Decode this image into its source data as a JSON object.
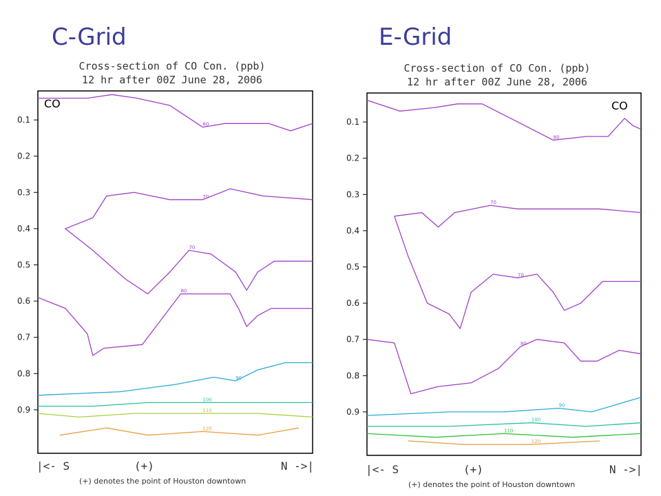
{
  "headings": [
    "C-Grid",
    "E-Grid"
  ],
  "panels": [
    {
      "title_line1": "Cross-section of CO Con. (ppb)",
      "title_line2": "12 hr after 00Z June 28, 2006",
      "species_label": "CO",
      "left_label": "|<- S",
      "center_label": "(+)",
      "right_label": "N ->|",
      "note": "(+) denotes the point of Houston downtown"
    },
    {
      "title_line1": "Cross-section of CO Con. (ppb)",
      "title_line2": "12 hr after 00Z June 28, 2006",
      "species_label": "CO",
      "left_label": "|<- S",
      "center_label": "(+)",
      "right_label": "N ->|",
      "note": "(+) denotes the point of Houston downtown"
    }
  ],
  "chart_data": [
    {
      "type": "contour",
      "title": "Cross-section of CO Con. (ppb)",
      "subtitle": "12 hr after 00Z June 28, 2006",
      "xlabel": "|<- S    (+)    N ->|",
      "yticks": [
        0.1,
        0.2,
        0.3,
        0.4,
        0.5,
        0.6,
        0.7,
        0.8,
        0.9
      ],
      "contour_levels": [
        70,
        80,
        90,
        100,
        110,
        120
      ],
      "level_colors": {
        "70": "#a040c8",
        "80": "#a040c8",
        "90": "#2aa8d8",
        "100": "#28c0a0",
        "110": "#a8d040",
        "120": "#e8a040"
      },
      "contours": [
        {
          "level": 80,
          "points": [
            [
              0,
              0.02
            ],
            [
              0.18,
              0.02
            ],
            [
              0.27,
              0.01
            ],
            [
              0.36,
              0.02
            ],
            [
              0.48,
              0.04
            ],
            [
              0.6,
              0.1
            ],
            [
              0.68,
              0.09
            ],
            [
              0.84,
              0.09
            ],
            [
              0.92,
              0.11
            ],
            [
              1,
              0.09
            ]
          ]
        },
        {
          "level": 70,
          "points": [
            [
              0.2,
              0.35
            ],
            [
              0.25,
              0.29
            ],
            [
              0.35,
              0.28
            ],
            [
              0.48,
              0.3
            ],
            [
              0.6,
              0.3
            ],
            [
              0.7,
              0.27
            ],
            [
              0.82,
              0.29
            ],
            [
              1,
              0.3
            ]
          ]
        },
        {
          "level": 70,
          "points": [
            [
              0.2,
              0.35
            ],
            [
              0.1,
              0.38
            ],
            [
              0.2,
              0.44
            ],
            [
              0.32,
              0.52
            ],
            [
              0.4,
              0.56
            ],
            [
              0.48,
              0.5
            ],
            [
              0.55,
              0.44
            ],
            [
              0.63,
              0.45
            ],
            [
              0.72,
              0.5
            ],
            [
              0.76,
              0.55
            ],
            [
              0.8,
              0.5
            ],
            [
              0.86,
              0.47
            ],
            [
              1,
              0.47
            ]
          ]
        },
        {
          "level": 80,
          "points": [
            [
              0,
              0.57
            ],
            [
              0.1,
              0.6
            ],
            [
              0.18,
              0.67
            ],
            [
              0.2,
              0.73
            ],
            [
              0.24,
              0.71
            ],
            [
              0.38,
              0.7
            ],
            [
              0.44,
              0.64
            ],
            [
              0.52,
              0.56
            ],
            [
              0.62,
              0.56
            ],
            [
              0.7,
              0.56
            ],
            [
              0.73,
              0.6
            ],
            [
              0.76,
              0.65
            ],
            [
              0.8,
              0.62
            ],
            [
              0.85,
              0.6
            ],
            [
              1,
              0.6
            ]
          ]
        },
        {
          "level": 90,
          "points": [
            [
              0,
              0.84
            ],
            [
              0.3,
              0.83
            ],
            [
              0.5,
              0.81
            ],
            [
              0.64,
              0.79
            ],
            [
              0.72,
              0.8
            ],
            [
              0.8,
              0.77
            ],
            [
              0.9,
              0.75
            ],
            [
              1,
              0.75
            ]
          ]
        },
        {
          "level": 100,
          "points": [
            [
              0,
              0.87
            ],
            [
              0.2,
              0.87
            ],
            [
              0.4,
              0.86
            ],
            [
              0.6,
              0.86
            ],
            [
              0.8,
              0.86
            ],
            [
              1,
              0.86
            ]
          ]
        },
        {
          "level": 110,
          "points": [
            [
              0,
              0.89
            ],
            [
              0.15,
              0.9
            ],
            [
              0.35,
              0.89
            ],
            [
              0.6,
              0.89
            ],
            [
              0.8,
              0.89
            ],
            [
              1,
              0.9
            ]
          ]
        },
        {
          "level": 120,
          "points": [
            [
              0.08,
              0.95
            ],
            [
              0.25,
              0.93
            ],
            [
              0.4,
              0.95
            ],
            [
              0.6,
              0.94
            ],
            [
              0.8,
              0.95
            ],
            [
              0.95,
              0.93
            ]
          ]
        }
      ]
    },
    {
      "type": "contour",
      "title": "Cross-section of CO Con. (ppb)",
      "subtitle": "12 hr after 00Z June 28, 2006",
      "xlabel": "|<- S    (+)    N ->|",
      "yticks": [
        0.1,
        0.2,
        0.3,
        0.4,
        0.5,
        0.6,
        0.7,
        0.8,
        0.9
      ],
      "contour_levels": [
        70,
        80,
        90,
        100,
        110,
        120
      ],
      "level_colors": {
        "70": "#a040c8",
        "80": "#a040c8",
        "90": "#2aa8d8",
        "100": "#28c0a0",
        "110": "#30c040",
        "120": "#e8a040"
      },
      "contours": [
        {
          "level": 80,
          "points": [
            [
              0,
              0.02
            ],
            [
              0.12,
              0.05
            ],
            [
              0.25,
              0.04
            ],
            [
              0.33,
              0.03
            ],
            [
              0.42,
              0.03
            ],
            [
              0.55,
              0.08
            ],
            [
              0.68,
              0.13
            ],
            [
              0.8,
              0.12
            ],
            [
              0.88,
              0.12
            ],
            [
              0.94,
              0.07
            ],
            [
              0.97,
              0.09
            ],
            [
              1,
              0.1
            ]
          ]
        },
        {
          "level": 70,
          "points": [
            [
              0.1,
              0.34
            ],
            [
              0.2,
              0.33
            ],
            [
              0.26,
              0.37
            ],
            [
              0.32,
              0.33
            ],
            [
              0.45,
              0.31
            ],
            [
              0.55,
              0.32
            ],
            [
              0.7,
              0.32
            ],
            [
              0.85,
              0.32
            ],
            [
              1,
              0.33
            ]
          ]
        },
        {
          "level": 70,
          "points": [
            [
              0.1,
              0.34
            ],
            [
              0.15,
              0.45
            ],
            [
              0.22,
              0.58
            ],
            [
              0.3,
              0.61
            ],
            [
              0.34,
              0.65
            ],
            [
              0.38,
              0.55
            ],
            [
              0.46,
              0.5
            ],
            [
              0.55,
              0.51
            ],
            [
              0.62,
              0.5
            ],
            [
              0.68,
              0.55
            ],
            [
              0.72,
              0.6
            ],
            [
              0.78,
              0.58
            ],
            [
              0.86,
              0.52
            ],
            [
              1,
              0.52
            ]
          ]
        },
        {
          "level": 80,
          "points": [
            [
              0,
              0.68
            ],
            [
              0.1,
              0.69
            ],
            [
              0.16,
              0.83
            ],
            [
              0.26,
              0.81
            ],
            [
              0.38,
              0.8
            ],
            [
              0.48,
              0.76
            ],
            [
              0.56,
              0.7
            ],
            [
              0.62,
              0.68
            ],
            [
              0.72,
              0.69
            ],
            [
              0.78,
              0.74
            ],
            [
              0.84,
              0.74
            ],
            [
              0.92,
              0.71
            ],
            [
              1,
              0.72
            ]
          ]
        },
        {
          "level": 90,
          "points": [
            [
              0,
              0.89
            ],
            [
              0.3,
              0.88
            ],
            [
              0.5,
              0.88
            ],
            [
              0.7,
              0.87
            ],
            [
              0.82,
              0.88
            ],
            [
              1,
              0.84
            ]
          ]
        },
        {
          "level": 100,
          "points": [
            [
              0,
              0.92
            ],
            [
              0.3,
              0.92
            ],
            [
              0.6,
              0.91
            ],
            [
              0.8,
              0.92
            ],
            [
              1,
              0.91
            ]
          ]
        },
        {
          "level": 110,
          "points": [
            [
              0,
              0.94
            ],
            [
              0.25,
              0.95
            ],
            [
              0.5,
              0.94
            ],
            [
              0.75,
              0.95
            ],
            [
              1,
              0.94
            ]
          ]
        },
        {
          "level": 120,
          "points": [
            [
              0.15,
              0.96
            ],
            [
              0.35,
              0.97
            ],
            [
              0.6,
              0.97
            ],
            [
              0.85,
              0.96
            ]
          ]
        }
      ]
    }
  ]
}
